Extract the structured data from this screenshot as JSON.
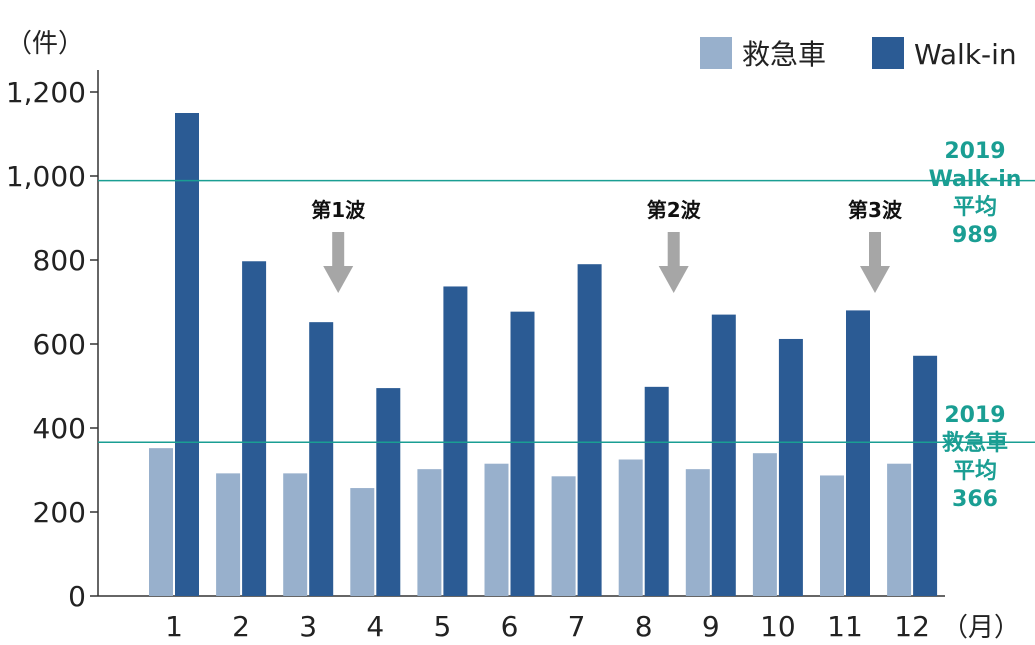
{
  "chart_data": {
    "type": "bar",
    "y_unit_label": "（件）",
    "x_unit_label": "（月）",
    "categories": [
      "1",
      "2",
      "3",
      "4",
      "5",
      "6",
      "7",
      "8",
      "9",
      "10",
      "11",
      "12"
    ],
    "series": [
      {
        "name": "救急車",
        "color": "#98b0cc",
        "values": [
          352,
          292,
          292,
          257,
          302,
          315,
          285,
          325,
          302,
          340,
          287,
          315
        ]
      },
      {
        "name": "Walk-in",
        "color": "#2b5b94",
        "values": [
          1150,
          797,
          652,
          495,
          737,
          677,
          790,
          498,
          670,
          612,
          680,
          572
        ]
      }
    ],
    "ylim": [
      0,
      1200
    ],
    "yticks": [
      0,
      200,
      400,
      600,
      800,
      1000,
      1200
    ],
    "ytick_labels": [
      "0",
      "200",
      "400",
      "600",
      "800",
      "1,000",
      "1,200"
    ],
    "legend_position": "top-right",
    "grid": false,
    "reference_lines": [
      {
        "value": 989,
        "color": "#1a9e93",
        "lines": [
          "2019",
          "Walk-in",
          "平均",
          "989"
        ]
      },
      {
        "value": 366,
        "color": "#1a9e93",
        "lines": [
          "2019",
          "救急車",
          "平均",
          "366"
        ]
      }
    ],
    "annotations": [
      {
        "text": "第1波",
        "month": "3"
      },
      {
        "text": "第2波",
        "month": "8"
      },
      {
        "text": "第3波",
        "month": "11"
      }
    ]
  }
}
